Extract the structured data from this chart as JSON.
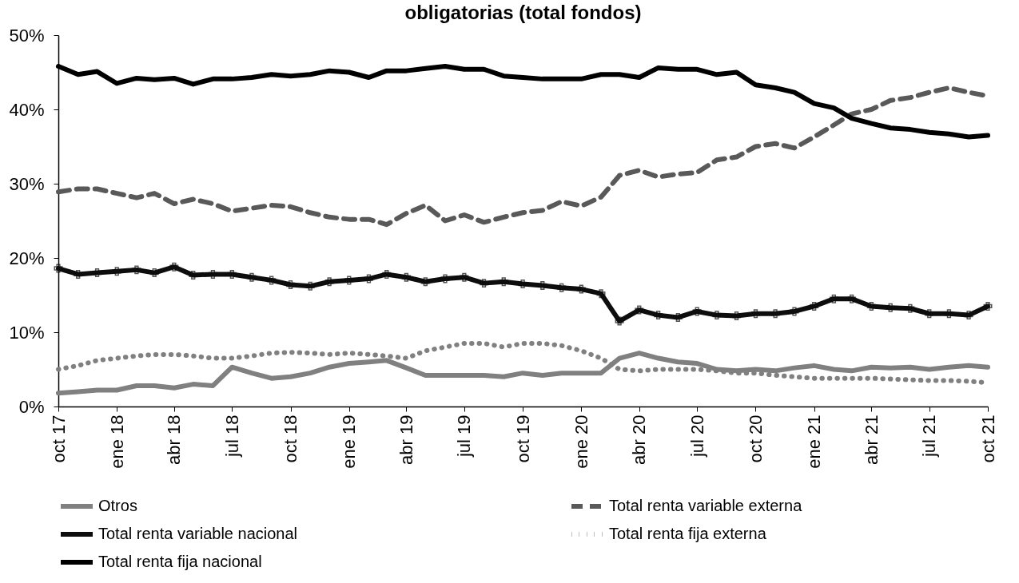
{
  "chart_data": {
    "type": "line",
    "title": "obligatorias (total fondos)",
    "x": [
      "2017-10",
      "2017-11",
      "2017-12",
      "2018-01",
      "2018-02",
      "2018-03",
      "2018-04",
      "2018-05",
      "2018-06",
      "2018-07",
      "2018-08",
      "2018-09",
      "2018-10",
      "2018-11",
      "2018-12",
      "2019-01",
      "2019-02",
      "2019-03",
      "2019-04",
      "2019-05",
      "2019-06",
      "2019-07",
      "2019-08",
      "2019-09",
      "2019-10",
      "2019-11",
      "2019-12",
      "2020-01",
      "2020-02",
      "2020-03",
      "2020-04",
      "2020-05",
      "2020-06",
      "2020-07",
      "2020-08",
      "2020-09",
      "2020-10",
      "2020-11",
      "2020-12",
      "2021-01",
      "2021-02",
      "2021-03",
      "2021-04",
      "2021-05",
      "2021-06",
      "2021-07",
      "2021-08",
      "2021-09",
      "2021-10"
    ],
    "series": [
      {
        "name": "Otros",
        "color": "#808080",
        "line_style": "solid",
        "values": [
          1.8,
          2,
          2.2,
          2.2,
          2.8,
          2.8,
          2.5,
          3,
          2.8,
          5.3,
          4.5,
          3.8,
          4,
          4.5,
          5.3,
          5.8,
          6,
          6.2,
          5.2,
          4.2,
          4.2,
          4.2,
          4.2,
          4,
          4.5,
          4.2,
          4.5,
          4.5,
          4.5,
          6.5,
          7.2,
          6.5,
          6,
          5.8,
          5,
          4.8,
          5,
          4.8,
          5.2,
          5.5,
          5,
          4.8,
          5.3,
          5.2,
          5.3,
          5,
          5.3,
          5.5,
          5.3
        ]
      },
      {
        "name": "Total renta variable externa",
        "color": "#595959",
        "line_style": "dashed",
        "values": [
          28.9,
          29.3,
          29.3,
          28.7,
          28.1,
          28.7,
          27.3,
          27.9,
          27.3,
          26.3,
          26.7,
          27.1,
          26.9,
          26.1,
          25.5,
          25.2,
          25.2,
          24.5,
          26,
          27.1,
          25,
          25.8,
          24.8,
          25.5,
          26.1,
          26.4,
          27.6,
          27,
          28.2,
          31.1,
          31.8,
          30.9,
          31.3,
          31.5,
          33.2,
          33.6,
          35,
          35.4,
          34.8,
          36.3,
          37.9,
          39.4,
          40,
          41.2,
          41.6,
          42.3,
          42.9,
          42.3,
          41.8
        ]
      },
      {
        "name": "Total renta variable nacional",
        "color": "#0d0d0d",
        "line_style": "solid",
        "marker": "cross",
        "values": [
          18.6,
          17.8,
          18,
          18.2,
          18.4,
          18,
          18.8,
          17.7,
          17.8,
          17.8,
          17.4,
          17,
          16.4,
          16.2,
          16.8,
          17,
          17.2,
          17.8,
          17.4,
          16.8,
          17.2,
          17.4,
          16.6,
          16.8,
          16.5,
          16.3,
          16,
          15.8,
          15.2,
          11.5,
          13,
          12.3,
          12,
          12.8,
          12.3,
          12.2,
          12.5,
          12.5,
          12.8,
          13.5,
          14.5,
          14.5,
          13.5,
          13.3,
          13.2,
          12.5,
          12.5,
          12.3,
          13.5
        ]
      },
      {
        "name": "Total renta fija externa",
        "color": "#808080",
        "line_style": "dotted",
        "values": [
          5,
          5.5,
          6.2,
          6.5,
          6.8,
          7,
          7,
          6.8,
          6.5,
          6.5,
          6.8,
          7.2,
          7.3,
          7.2,
          7,
          7.2,
          7,
          6.8,
          6.5,
          7.5,
          8,
          8.5,
          8.5,
          8,
          8.5,
          8.5,
          8.2,
          7.5,
          6.5,
          5,
          4.8,
          5,
          5,
          5,
          4.8,
          4.5,
          4.5,
          4.2,
          4,
          3.8,
          3.8,
          3.8,
          3.8,
          3.7,
          3.6,
          3.5,
          3.5,
          3.4,
          3.2
        ]
      },
      {
        "name": "Total renta fija nacional",
        "color": "#000000",
        "line_style": "solid",
        "values": [
          45.8,
          44.7,
          45.1,
          43.5,
          44.2,
          44,
          44.2,
          43.4,
          44.1,
          44.1,
          44.3,
          44.7,
          44.5,
          44.7,
          45.2,
          45,
          44.3,
          45.2,
          45.2,
          45.5,
          45.8,
          45.4,
          45.4,
          44.5,
          44.3,
          44.1,
          44.1,
          44.1,
          44.7,
          44.7,
          44.3,
          45.6,
          45.4,
          45.4,
          44.7,
          45,
          43.3,
          42.9,
          42.3,
          40.8,
          40.2,
          38.8,
          38.1,
          37.5,
          37.3,
          36.9,
          36.7,
          36.3,
          36.5
        ]
      }
    ],
    "ylim": [
      0,
      50
    ],
    "yticks": [
      {
        "value": 0,
        "label": "0%"
      },
      {
        "value": 10,
        "label": "10%"
      },
      {
        "value": 20,
        "label": "20%"
      },
      {
        "value": 30,
        "label": "30%"
      },
      {
        "value": 40,
        "label": "40%"
      },
      {
        "value": 50,
        "label": "50%"
      }
    ],
    "xlim": [
      "2017-10",
      "2021-10"
    ],
    "xticks": [
      {
        "value": "2017-10",
        "label": "oct 17"
      },
      {
        "value": "2018-01",
        "label": "ene 18"
      },
      {
        "value": "2018-04",
        "label": "abr 18"
      },
      {
        "value": "2018-07",
        "label": "jul 18"
      },
      {
        "value": "2018-10",
        "label": "oct 18"
      },
      {
        "value": "2019-01",
        "label": "ene 19"
      },
      {
        "value": "2019-04",
        "label": "abr 19"
      },
      {
        "value": "2019-07",
        "label": "jul 19"
      },
      {
        "value": "2019-10",
        "label": "oct 19"
      },
      {
        "value": "2020-01",
        "label": "ene 20"
      },
      {
        "value": "2020-04",
        "label": "abr 20"
      },
      {
        "value": "2020-07",
        "label": "jul 20"
      },
      {
        "value": "2020-10",
        "label": "oct 20"
      },
      {
        "value": "2021-01",
        "label": "ene 21"
      },
      {
        "value": "2021-04",
        "label": "abr 21"
      },
      {
        "value": "2021-07",
        "label": "jul 21"
      },
      {
        "value": "2021-10",
        "label": "oct 21"
      }
    ],
    "grid": false,
    "legend": "bottom"
  }
}
